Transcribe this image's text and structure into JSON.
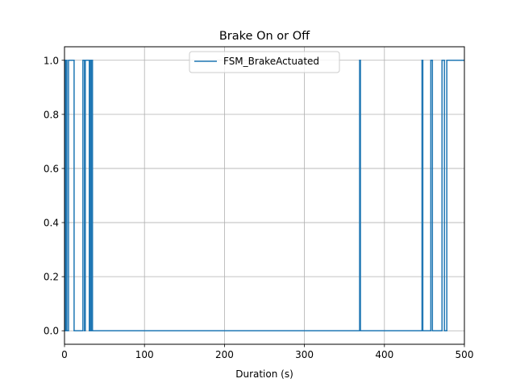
{
  "chart_data": {
    "type": "line",
    "title": "Brake On or Off",
    "xlabel": "Duration (s)",
    "ylabel": "",
    "xlim": [
      0,
      500
    ],
    "ylim": [
      -0.05,
      1.05
    ],
    "xticks": [
      0,
      100,
      200,
      300,
      400,
      500
    ],
    "xtick_labels": [
      "0",
      "100",
      "200",
      "300",
      "400",
      "500"
    ],
    "yticks": [
      0.0,
      0.2,
      0.4,
      0.6,
      0.8,
      1.0
    ],
    "ytick_labels": [
      "0.0",
      "0.2",
      "0.4",
      "0.6",
      "0.8",
      "1.0"
    ],
    "grid": true,
    "legend_position": "top-center",
    "series": [
      {
        "name": "FSM_BrakeActuated",
        "color": "#1f77b4",
        "step": true,
        "x": [
          0,
          1,
          2,
          3,
          5,
          12,
          23,
          25,
          26,
          31,
          32,
          33,
          34,
          35,
          369,
          370,
          447,
          448,
          458,
          460,
          472,
          475,
          478,
          481,
          500
        ],
        "y": [
          1,
          0,
          1,
          0,
          1,
          0,
          1,
          0,
          1,
          0,
          1,
          0,
          1,
          0,
          1,
          0,
          1,
          0,
          1,
          0,
          1,
          0,
          1,
          1,
          1
        ]
      }
    ]
  }
}
